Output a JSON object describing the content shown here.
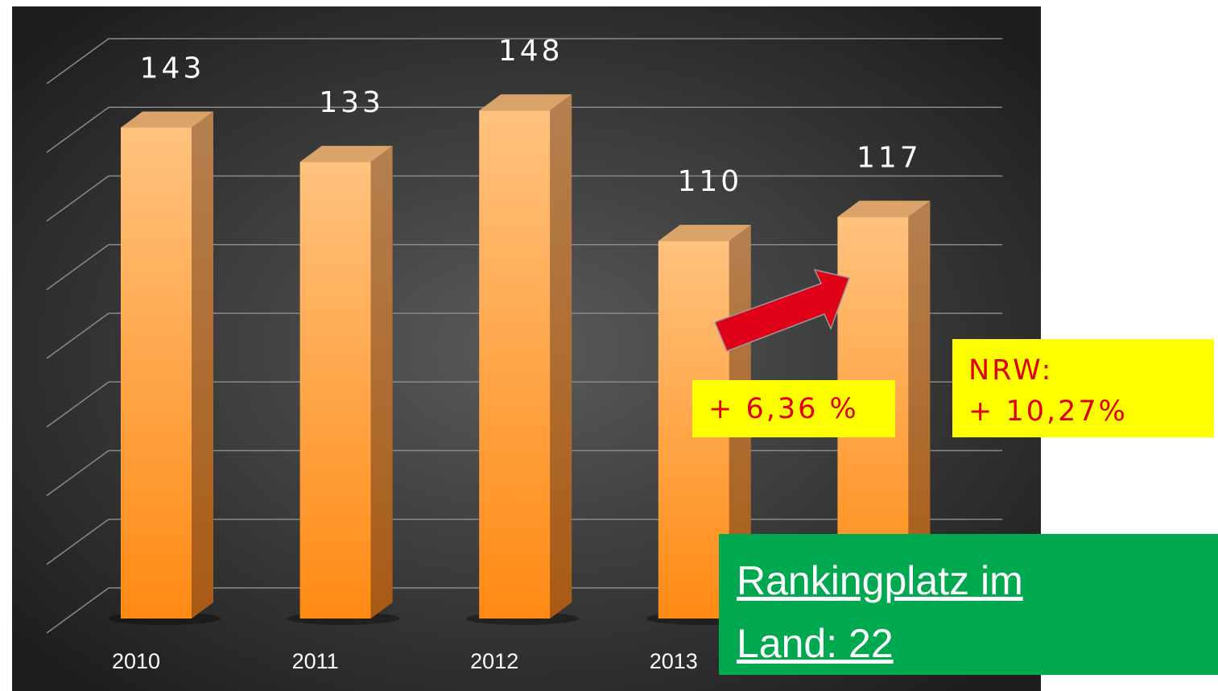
{
  "chart_data": {
    "type": "bar3d",
    "categories": [
      "2010",
      "2011",
      "2012",
      "2013",
      null
    ],
    "values": [
      143,
      133,
      148,
      110,
      117
    ],
    "color": "#ff9a33",
    "ylim": [
      0,
      160
    ],
    "yticks": [
      0,
      20,
      40,
      60,
      80,
      100,
      120,
      140,
      160
    ],
    "grid": true,
    "annotations": {
      "change": "+ 6,36 %",
      "nrw_label": "NRW:",
      "nrw_change": "+ 10,27%",
      "ranking": "Rankingplatz im Land: 22"
    }
  }
}
